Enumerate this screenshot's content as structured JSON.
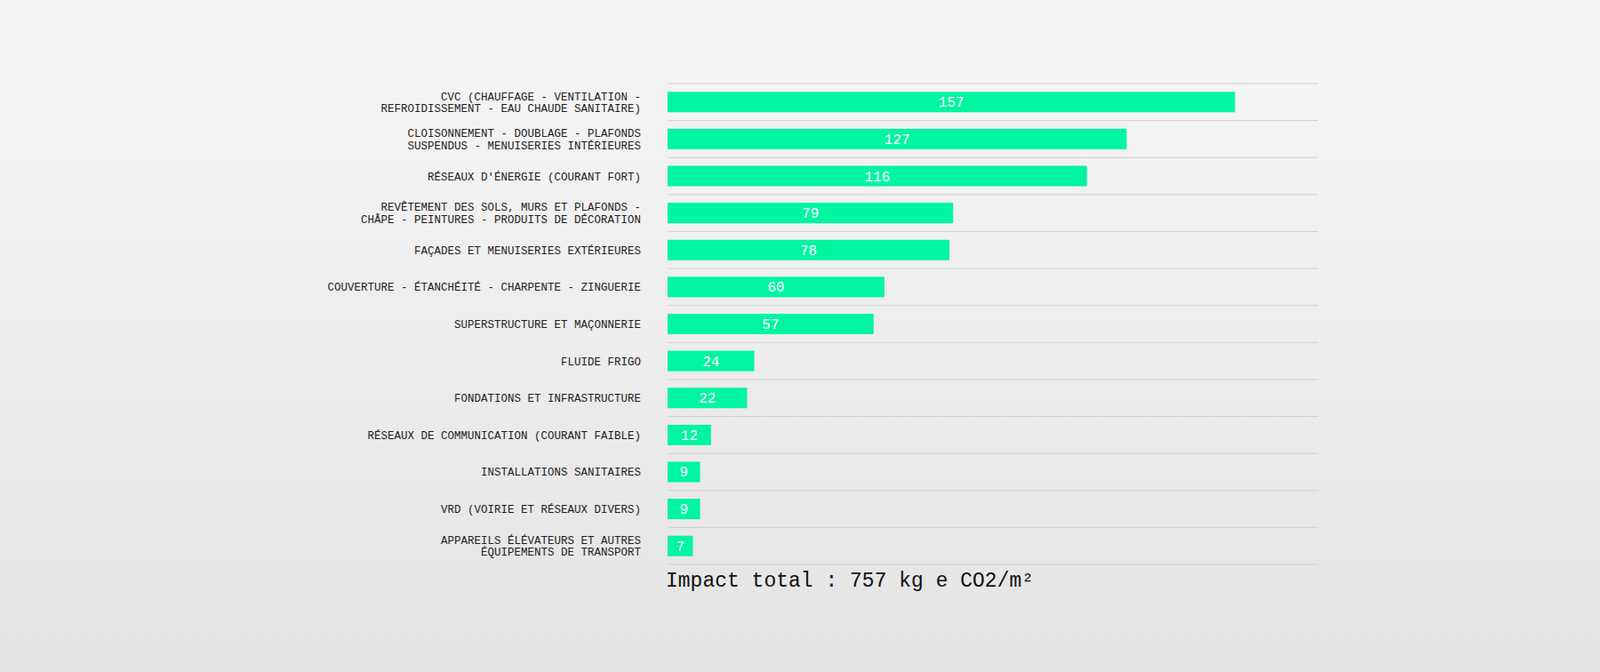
{
  "chart_data": {
    "type": "bar",
    "orientation": "horizontal",
    "categories": [
      "CVC (CHAUFFAGE - VENTILATION - REFROIDISSEMENT - EAU CHAUDE SANITAIRE)",
      "CLOISONNEMENT - DOUBLAGE - PLAFONDS SUSPENDUS - MENUISERIES INTÉRIEURES",
      "RÉSEAUX D'ÉNERGIE (COURANT FORT)",
      "REVÊTEMENT DES SOLS, MURS ET PLAFONDS - CHÂPE - PEINTURES - PRODUITS DE DÉCORATION",
      "FAÇADES ET MENUISERIES EXTÉRIEURES",
      "COUVERTURE - ÉTANCHÉITÉ - CHARPENTE - ZINGUERIE",
      "SUPERSTRUCTURE ET MAÇONNERIE",
      "FLUIDE FRIGO",
      "FONDATIONS ET INFRASTRUCTURE",
      "RÉSEAUX DE COMMUNICATION (COURANT FAIBLE)",
      "INSTALLATIONS SANITAIRES",
      "VRD (VOIRIE ET RÉSEAUX DIVERS)",
      "APPAREILS ÉLÉVATEURS ET AUTRES ÉQUIPEMENTS DE TRANSPORT"
    ],
    "values": [
      157,
      127,
      116,
      79,
      78,
      60,
      57,
      24,
      22,
      12,
      9,
      9,
      7
    ],
    "color": "#00f5a0",
    "xlim": [
      0,
      180
    ],
    "grid": true,
    "data_labels": true,
    "tick_labels": false,
    "annotation": "Impact total : 757 kg e CO2/m²"
  }
}
